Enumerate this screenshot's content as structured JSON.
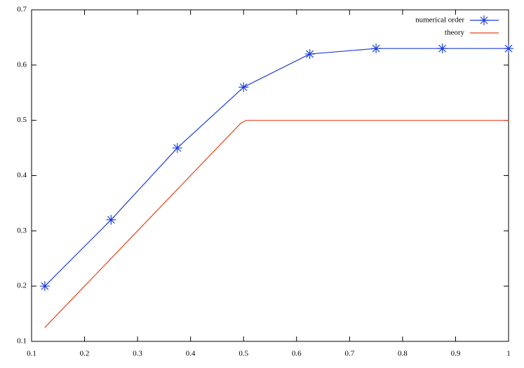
{
  "chart_data": {
    "type": "line",
    "xlim": [
      0.1,
      1
    ],
    "xticks": [
      0.1,
      0.2,
      0.3,
      0.4,
      0.5,
      0.6,
      0.7,
      0.8,
      0.9,
      1
    ],
    "ylim": [
      0.1,
      0.7
    ],
    "yticks": [
      0.1,
      0.2,
      0.3,
      0.4,
      0.5,
      0.6,
      0.7
    ],
    "legend": "top-right",
    "series": [
      {
        "name": "numerical order",
        "color": "#1f3fd8",
        "marker": "asterisk",
        "x": [
          0.125,
          0.25,
          0.375,
          0.5,
          0.625,
          0.75,
          0.875,
          1
        ],
        "values": [
          0.2,
          0.32,
          0.45,
          0.56,
          0.62,
          0.63,
          0.63,
          0.63
        ]
      },
      {
        "name": "theory",
        "color": "#e8401c",
        "x": [
          0.125,
          0.495,
          0.505,
          1
        ],
        "values": [
          0.125,
          0.495,
          0.5,
          0.5
        ]
      }
    ]
  }
}
